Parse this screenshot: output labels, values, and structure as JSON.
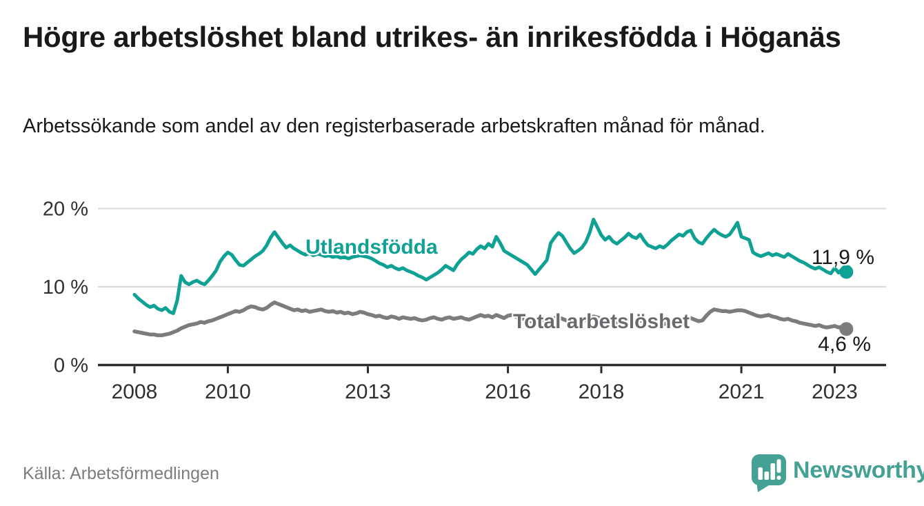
{
  "chart_data": {
    "type": "line",
    "title": "Högre arbetslöshet bland utrikes- än inrikesfödda i Höganäs",
    "subtitle": "Arbetssökande som andel av den registerbaserade arbetskraften månad för månad.",
    "x_unit": "month",
    "x_start": "2008-01",
    "x_end": "2023-04",
    "grid": "horizontal-only",
    "legend_position": "inline-labels",
    "x_ticks": [
      {
        "year": 2008,
        "label": "2008"
      },
      {
        "year": 2010,
        "label": "2010"
      },
      {
        "year": 2013,
        "label": "2013"
      },
      {
        "year": 2016,
        "label": "2016"
      },
      {
        "year": 2018,
        "label": "2018"
      },
      {
        "year": 2021,
        "label": "2021"
      },
      {
        "year": 2023,
        "label": "2023"
      }
    ],
    "y_axis": {
      "min": 0,
      "max": 21.5,
      "ticks": [
        {
          "value": 20,
          "label": "20 %"
        },
        {
          "value": 10,
          "label": "10 %"
        },
        {
          "value": 0,
          "label": "0 %"
        }
      ]
    },
    "series": [
      {
        "name": "Utlandsfödda",
        "color": "#0fa294",
        "label_color": "#0fa294",
        "end_label": "11,9 %",
        "end_value": 11.9,
        "values": [
          9.0,
          8.5,
          8.1,
          7.7,
          7.4,
          7.6,
          7.2,
          7.0,
          7.3,
          6.8,
          6.6,
          8.3,
          11.4,
          10.6,
          10.3,
          10.6,
          10.8,
          10.5,
          10.3,
          10.8,
          11.4,
          12.1,
          13.2,
          13.9,
          14.4,
          14.1,
          13.4,
          12.8,
          12.7,
          13.1,
          13.5,
          13.9,
          14.2,
          14.6,
          15.3,
          16.3,
          17.0,
          16.3,
          15.6,
          15.0,
          15.3,
          14.9,
          14.6,
          14.3,
          14.1,
          14.3,
          14.0,
          14.2,
          14.1,
          13.9,
          14.0,
          13.8,
          13.9,
          13.7,
          13.8,
          13.6,
          13.8,
          13.9,
          14.0,
          13.9,
          13.8,
          13.6,
          13.3,
          13.0,
          12.8,
          12.5,
          12.7,
          12.4,
          12.2,
          12.4,
          12.1,
          11.9,
          11.7,
          11.4,
          11.2,
          10.9,
          11.2,
          11.5,
          11.8,
          12.2,
          12.7,
          12.4,
          12.1,
          12.9,
          13.5,
          13.9,
          14.4,
          14.2,
          14.8,
          15.2,
          14.9,
          15.5,
          15.1,
          16.4,
          15.6,
          14.6,
          14.3,
          14.0,
          13.7,
          13.4,
          13.1,
          12.8,
          12.2,
          11.6,
          12.2,
          12.8,
          13.4,
          15.6,
          16.3,
          16.9,
          16.5,
          15.7,
          14.9,
          14.3,
          14.6,
          15.0,
          15.7,
          16.9,
          18.6,
          17.6,
          16.6,
          16.0,
          16.4,
          15.8,
          15.5,
          15.9,
          16.3,
          16.8,
          16.4,
          16.2,
          16.7,
          15.9,
          15.3,
          15.1,
          14.9,
          15.2,
          15.0,
          15.4,
          15.9,
          16.3,
          16.7,
          16.5,
          17.0,
          17.2,
          16.2,
          15.7,
          15.5,
          16.2,
          16.8,
          17.3,
          16.9,
          16.6,
          16.4,
          16.7,
          17.4,
          18.2,
          16.4,
          16.2,
          16.0,
          14.4,
          14.1,
          13.9,
          14.1,
          14.3,
          14.0,
          14.2,
          14.0,
          13.8,
          14.2,
          13.9,
          13.6,
          13.3,
          13.1,
          12.8,
          12.5,
          12.3,
          12.5,
          12.2,
          11.9,
          11.7,
          12.4,
          11.8,
          12.3,
          11.9
        ]
      },
      {
        "name": "Total arbetslöshet",
        "color": "#7c7c7c",
        "label_color": "#6a6a6e",
        "end_label": "4,6 %",
        "end_value": 4.6,
        "values": [
          4.3,
          4.2,
          4.1,
          4.0,
          3.9,
          3.9,
          3.8,
          3.8,
          3.9,
          4.0,
          4.2,
          4.4,
          4.7,
          4.9,
          5.1,
          5.2,
          5.3,
          5.5,
          5.4,
          5.6,
          5.7,
          5.9,
          6.1,
          6.3,
          6.5,
          6.7,
          6.9,
          6.8,
          7.0,
          7.3,
          7.5,
          7.4,
          7.2,
          7.1,
          7.3,
          7.7,
          8.0,
          7.8,
          7.6,
          7.4,
          7.2,
          7.0,
          7.1,
          6.9,
          7.0,
          6.8,
          6.9,
          7.0,
          7.1,
          6.9,
          6.8,
          6.9,
          6.7,
          6.8,
          6.6,
          6.7,
          6.5,
          6.6,
          6.8,
          6.7,
          6.5,
          6.4,
          6.2,
          6.3,
          6.1,
          6.0,
          6.2,
          6.1,
          5.9,
          6.1,
          6.0,
          5.9,
          6.0,
          5.8,
          5.7,
          5.8,
          6.0,
          6.1,
          5.9,
          5.8,
          6.0,
          6.1,
          5.9,
          6.0,
          6.1,
          5.9,
          5.8,
          6.0,
          6.2,
          6.4,
          6.2,
          6.3,
          6.1,
          6.4,
          6.2,
          6.0,
          6.3,
          6.4,
          6.2,
          6.0,
          5.9,
          5.8,
          5.6,
          5.5,
          5.6,
          5.8,
          5.7,
          5.9,
          6.0,
          6.1,
          5.9,
          5.7,
          5.5,
          5.4,
          5.5,
          5.7,
          5.8,
          6.0,
          6.2,
          6.1,
          5.9,
          5.7,
          5.6,
          5.4,
          5.3,
          5.5,
          5.6,
          5.8,
          5.6,
          5.5,
          5.7,
          5.6,
          5.4,
          5.3,
          5.2,
          5.3,
          5.2,
          5.4,
          5.6,
          5.7,
          5.8,
          5.7,
          5.9,
          6.0,
          5.8,
          5.6,
          5.7,
          6.3,
          6.8,
          7.1,
          7.0,
          6.9,
          6.9,
          6.8,
          6.9,
          7.0,
          7.0,
          6.9,
          6.7,
          6.5,
          6.3,
          6.2,
          6.3,
          6.4,
          6.2,
          6.1,
          5.9,
          5.8,
          5.9,
          5.7,
          5.6,
          5.4,
          5.3,
          5.2,
          5.1,
          5.0,
          5.1,
          4.9,
          4.8,
          4.9,
          5.0,
          4.8,
          4.9,
          4.6
        ]
      }
    ]
  },
  "footer": {
    "source": "Källa: Arbetsförmedlingen",
    "brand": "Newsworthy"
  }
}
